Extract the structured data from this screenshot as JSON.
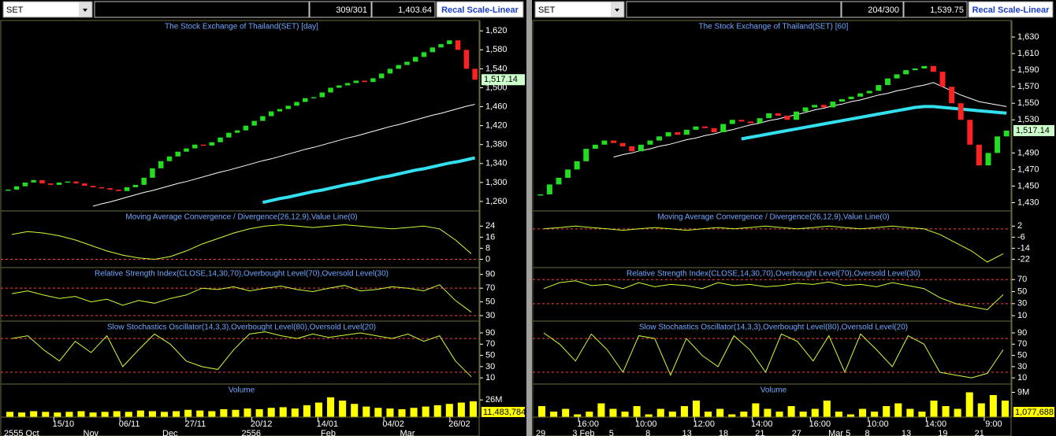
{
  "panes": [
    {
      "symbol": "SET",
      "counter": "309/301",
      "price": "1,403.64",
      "button": "Recal Scale-Linear",
      "price_panel": {
        "title": "The Stock Exchange of Thailand(SET) [day]",
        "ylim": [
          1240,
          1642
        ],
        "yticks": [
          {
            "value": 1620,
            "label": "1,620"
          },
          {
            "value": 1580,
            "label": "1,580"
          },
          {
            "value": 1540,
            "label": "1,540"
          },
          {
            "value": 1500,
            "label": "1,500"
          },
          {
            "value": 1460,
            "label": "1,460"
          },
          {
            "value": 1420,
            "label": "1,420"
          },
          {
            "value": 1380,
            "label": "1,380"
          },
          {
            "value": 1340,
            "label": "1,340"
          },
          {
            "value": 1300,
            "label": "1,300"
          },
          {
            "value": 1260,
            "label": "1,260"
          }
        ],
        "last_label": "1,517.14",
        "close": [
          1285,
          1292,
          1300,
          1305,
          1298,
          1295,
          1300,
          1302,
          1298,
          1293,
          1290,
          1288,
          1285,
          1282,
          1290,
          1295,
          1310,
          1330,
          1345,
          1355,
          1365,
          1372,
          1380,
          1378,
          1385,
          1395,
          1405,
          1410,
          1420,
          1430,
          1440,
          1450,
          1455,
          1462,
          1470,
          1478,
          1480,
          1490,
          1500,
          1505,
          1510,
          1515,
          1512,
          1520,
          1530,
          1540,
          1548,
          1555,
          1565,
          1575,
          1585,
          1592,
          1600,
          1580,
          1540,
          1517
        ],
        "ma_long": [
          null,
          null,
          null,
          null,
          null,
          null,
          null,
          null,
          null,
          null,
          1250,
          1255,
          1259,
          1264,
          1269,
          1274,
          1279,
          1283,
          1288,
          1293,
          1298,
          1302,
          1307,
          1312,
          1317,
          1322,
          1326,
          1331,
          1336,
          1341,
          1346,
          1350,
          1355,
          1360,
          1365,
          1370,
          1374,
          1379,
          1384,
          1389,
          1394,
          1398,
          1403,
          1408,
          1413,
          1418,
          1422,
          1427,
          1432,
          1437,
          1442,
          1446,
          1451,
          1456,
          1461,
          1465
        ],
        "ma_trend": [
          null,
          null,
          null,
          null,
          null,
          null,
          null,
          null,
          null,
          null,
          null,
          null,
          null,
          null,
          null,
          null,
          null,
          null,
          null,
          null,
          null,
          null,
          null,
          null,
          null,
          null,
          null,
          null,
          null,
          null,
          1258,
          1262,
          1266,
          1269,
          1273,
          1277,
          1281,
          1284,
          1288,
          1292,
          1296,
          1299,
          1303,
          1307,
          1311,
          1314,
          1318,
          1322,
          1326,
          1329,
          1333,
          1337,
          1341,
          1344,
          1348,
          1352
        ]
      },
      "macd": {
        "title": "Moving Average Convergence / Divergence(26,12,9),Value Line(0)",
        "ylim": [
          -6,
          35
        ],
        "yticks": [
          24,
          16,
          8,
          0
        ],
        "levels": [
          0
        ],
        "values": [
          18,
          20,
          19,
          17,
          14,
          10,
          6,
          3,
          1,
          0,
          2,
          6,
          11,
          15,
          19,
          22,
          24,
          25,
          24,
          23,
          24,
          25,
          24,
          23,
          22,
          23,
          24,
          22,
          14,
          4
        ]
      },
      "rsi": {
        "title": "Relative Strength Index(CLOSE,14,30,70),Overbought Level(70),Oversold Level(30)",
        "ylim": [
          22,
          100
        ],
        "yticks": [
          90,
          70,
          50,
          30
        ],
        "levels": [
          70,
          30
        ],
        "values": [
          62,
          66,
          60,
          55,
          58,
          50,
          54,
          45,
          52,
          48,
          55,
          60,
          70,
          68,
          72,
          66,
          70,
          73,
          68,
          65,
          70,
          74,
          66,
          68,
          72,
          70,
          66,
          75,
          52,
          35
        ]
      },
      "stoch": {
        "title": "Slow Stochastics Oscillator(14,3,3),Overbought Level(80),Oversold Level(20)",
        "ylim": [
          -1,
          111
        ],
        "yticks": [
          90,
          70,
          50,
          30,
          10
        ],
        "levels": [
          80,
          20
        ],
        "values": [
          80,
          85,
          60,
          40,
          75,
          55,
          85,
          30,
          60,
          88,
          70,
          40,
          30,
          25,
          60,
          88,
          92,
          85,
          80,
          88,
          82,
          86,
          90,
          85,
          80,
          88,
          75,
          85,
          40,
          12
        ]
      },
      "volume": {
        "title": "Volume",
        "ylim": [
          0,
          50
        ],
        "yticks": [
          {
            "value": 26,
            "label": "26M"
          }
        ],
        "last_label": "11,483,784",
        "values": [
          8,
          7,
          9,
          8,
          7,
          8,
          9,
          7,
          8,
          9,
          8,
          10,
          9,
          8,
          9,
          11,
          10,
          9,
          12,
          11,
          13,
          12,
          14,
          15,
          13,
          18,
          22,
          30,
          25,
          20,
          16,
          14,
          13,
          12,
          14,
          16,
          18,
          20,
          22,
          24
        ]
      },
      "dates": [
        "15/10",
        "06/11",
        "27/11",
        "20/12",
        "14/01",
        "04/02",
        "26/02"
      ],
      "months": [
        "2555 Oct",
        "Nov",
        "Dec",
        "2556",
        "Feb",
        "Mar"
      ]
    },
    {
      "symbol": "SET",
      "counter": "204/300",
      "price": "1,539.75",
      "button": "Recal Scale-Linear",
      "price_panel": {
        "title": "The Stock Exchange of Thailand(SET) [60]",
        "ylim": [
          1420,
          1650
        ],
        "yticks": [
          {
            "value": 1630,
            "label": "1,630"
          },
          {
            "value": 1610,
            "label": "1,610"
          },
          {
            "value": 1590,
            "label": "1,590"
          },
          {
            "value": 1570,
            "label": "1,570"
          },
          {
            "value": 1550,
            "label": "1,550"
          },
          {
            "value": 1530,
            "label": "1,530"
          },
          {
            "value": 1490,
            "label": "1,490"
          },
          {
            "value": 1470,
            "label": "1,470"
          },
          {
            "value": 1450,
            "label": "1,450"
          },
          {
            "value": 1430,
            "label": "1,430"
          }
        ],
        "last_label": "1,517.14",
        "close": [
          1440,
          1452,
          1460,
          1470,
          1480,
          1495,
          1500,
          1505,
          1502,
          1498,
          1492,
          1500,
          1505,
          1510,
          1515,
          1512,
          1518,
          1522,
          1520,
          1515,
          1525,
          1530,
          1528,
          1526,
          1532,
          1538,
          1535,
          1530,
          1540,
          1545,
          1548,
          1545,
          1552,
          1555,
          1558,
          1562,
          1565,
          1572,
          1580,
          1585,
          1590,
          1592,
          1595,
          1588,
          1570,
          1550,
          1530,
          1500,
          1475,
          1490,
          1510,
          1517
        ],
        "ma_long": [
          null,
          null,
          null,
          null,
          null,
          null,
          null,
          null,
          1485,
          1488,
          1490,
          1493,
          1495,
          1498,
          1500,
          1503,
          1506,
          1508,
          1511,
          1513,
          1516,
          1518,
          1521,
          1524,
          1526,
          1529,
          1531,
          1534,
          1536,
          1539,
          1542,
          1544,
          1547,
          1549,
          1552,
          1554,
          1557,
          1560,
          1562,
          1565,
          1567,
          1570,
          1572,
          1575,
          1570,
          1565,
          1560,
          1556,
          1552,
          1550,
          1548,
          1546
        ],
        "ma_trend": [
          null,
          null,
          null,
          null,
          null,
          null,
          null,
          null,
          null,
          null,
          null,
          null,
          null,
          null,
          null,
          null,
          null,
          null,
          null,
          null,
          null,
          null,
          1507,
          1509,
          1511,
          1513,
          1515,
          1517,
          1519,
          1521,
          1523,
          1525,
          1527,
          1529,
          1531,
          1533,
          1535,
          1537,
          1539,
          1541,
          1543,
          1545,
          1546,
          1546,
          1545,
          1544,
          1543,
          1542,
          1541,
          1540,
          1539,
          1538
        ]
      },
      "macd": {
        "title": "Moving Average Convergence / Divergence(26,12,9),Value Line(0)",
        "ylim": [
          -28,
          13
        ],
        "yticks": [
          2,
          -6,
          -14,
          -22
        ],
        "levels": [
          0
        ],
        "values": [
          0,
          1,
          2,
          1,
          0,
          -1,
          0,
          1,
          0,
          -1,
          0,
          1,
          0,
          1,
          2,
          1,
          0,
          1,
          2,
          1,
          0,
          1,
          2,
          1,
          0,
          -4,
          -10,
          -16,
          -24,
          -18
        ]
      },
      "rsi": {
        "title": "Relative Strength Index(CLOSE,14,30,70),Overbought Level(70),Oversold Level(30)",
        "ylim": [
          1,
          90
        ],
        "yticks": [
          70,
          50,
          30,
          10
        ],
        "levels": [
          70,
          30
        ],
        "values": [
          55,
          65,
          68,
          60,
          62,
          55,
          65,
          58,
          62,
          60,
          55,
          65,
          60,
          62,
          58,
          60,
          64,
          62,
          66,
          60,
          62,
          58,
          65,
          60,
          55,
          40,
          30,
          25,
          20,
          45
        ]
      },
      "stoch": {
        "title": "Slow Stochastics Oscillator(14,3,3),Overbought Level(80),Oversold Level(20)",
        "ylim": [
          -1,
          111
        ],
        "yticks": [
          90,
          70,
          50,
          30,
          10
        ],
        "levels": [
          80,
          20
        ],
        "values": [
          90,
          70,
          40,
          88,
          60,
          20,
          85,
          80,
          15,
          80,
          50,
          30,
          85,
          60,
          20,
          88,
          75,
          40,
          85,
          20,
          88,
          60,
          30,
          85,
          70,
          20,
          15,
          10,
          18,
          60
        ]
      },
      "volume": {
        "title": "Volume",
        "ylim": [
          0,
          12
        ],
        "yticks": [
          {
            "value": 9,
            "label": "9M"
          }
        ],
        "last_label": "1,077,688",
        "values": [
          4,
          2,
          3,
          1,
          2,
          5,
          3,
          2,
          4,
          1,
          3,
          2,
          4,
          6,
          2,
          3,
          1,
          2,
          5,
          3,
          2,
          4,
          2,
          3,
          6,
          2,
          1,
          3,
          2,
          4,
          5,
          3,
          2,
          6,
          4,
          3,
          9,
          5,
          8,
          6
        ]
      },
      "dates": [
        "16:00",
        "10:00",
        "12:00",
        "14:00",
        "16:00",
        "10:00",
        "14:00",
        "9:00"
      ],
      "months": [
        "29",
        "3 Feb",
        "5",
        "8",
        "13",
        "18",
        "21",
        "27",
        "Mar 5",
        "8",
        "13",
        "19",
        "21"
      ]
    }
  ]
}
